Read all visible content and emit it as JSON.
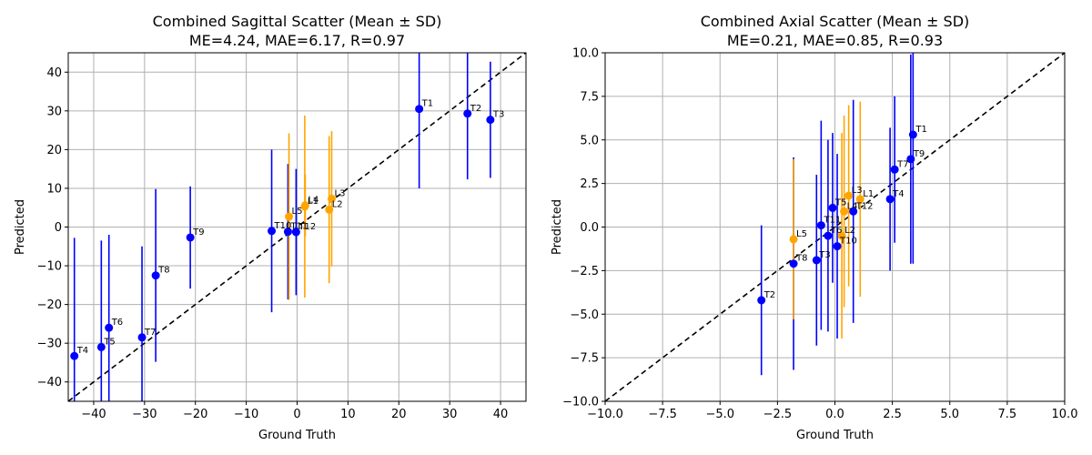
{
  "colors": {
    "thoracic": "#0000ff",
    "lumbar": "#ffa500",
    "identity": "#000000",
    "grid": "#b0b0b0"
  },
  "chart_data": [
    {
      "type": "scatter",
      "title": "Combined Sagittal Scatter (Mean ± SD)",
      "subtitle": "ME=4.24, MAE=6.17, R=0.97",
      "xlabel": "Ground Truth",
      "ylabel": "Predicted",
      "xlim": [
        -45,
        45
      ],
      "ylim": [
        -45,
        45
      ],
      "xticks": [
        -40,
        -30,
        -20,
        -10,
        0,
        10,
        20,
        30,
        40
      ],
      "yticks": [
        -40,
        -30,
        -20,
        -10,
        0,
        10,
        20,
        30,
        40
      ],
      "xtick_labels": [
        "−40",
        "−30",
        "−20",
        "−10",
        "0",
        "10",
        "20",
        "30",
        "40"
      ],
      "ytick_labels": [
        "−40",
        "−30",
        "−20",
        "−10",
        "0",
        "10",
        "20",
        "30",
        "40"
      ],
      "grid": true,
      "identity_line": true,
      "points": [
        {
          "label": "T1",
          "x": 24.0,
          "y": 30.5,
          "sd": 20.5,
          "group": "thoracic"
        },
        {
          "label": "T2",
          "x": 33.5,
          "y": 29.3,
          "sd": 17.0,
          "group": "thoracic"
        },
        {
          "label": "T3",
          "x": 38.0,
          "y": 27.7,
          "sd": 15.0,
          "group": "thoracic"
        },
        {
          "label": "T4",
          "x": -43.8,
          "y": -33.3,
          "sd": 30.5,
          "group": "thoracic"
        },
        {
          "label": "T5",
          "x": -38.5,
          "y": -31.0,
          "sd": 27.5,
          "group": "thoracic"
        },
        {
          "label": "T6",
          "x": -37.0,
          "y": -26.0,
          "sd": 24.0,
          "group": "thoracic"
        },
        {
          "label": "T7",
          "x": -30.5,
          "y": -28.5,
          "sd": 23.5,
          "group": "thoracic"
        },
        {
          "label": "T8",
          "x": -27.8,
          "y": -12.5,
          "sd": 22.3,
          "group": "thoracic"
        },
        {
          "label": "T9",
          "x": -21.0,
          "y": -2.7,
          "sd": 13.2,
          "group": "thoracic"
        },
        {
          "label": "T10",
          "x": -5.0,
          "y": -1.0,
          "sd": 21.0,
          "group": "thoracic"
        },
        {
          "label": "T11",
          "x": -1.8,
          "y": -1.2,
          "sd": 17.5,
          "group": "thoracic"
        },
        {
          "label": "T12",
          "x": -0.2,
          "y": -1.3,
          "sd": 16.3,
          "group": "thoracic"
        },
        {
          "label": "L1",
          "x": 1.5,
          "y": 5.3,
          "sd": 23.5,
          "group": "lumbar"
        },
        {
          "label": "L2",
          "x": 6.3,
          "y": 4.5,
          "sd": 19.0,
          "group": "lumbar"
        },
        {
          "label": "L3",
          "x": 6.8,
          "y": 7.3,
          "sd": 17.5,
          "group": "lumbar"
        },
        {
          "label": "L4",
          "x": 1.6,
          "y": 5.6,
          "sd": 8.0,
          "group": "lumbar"
        },
        {
          "label": "L5",
          "x": -1.6,
          "y": 2.7,
          "sd": 21.5,
          "group": "lumbar"
        }
      ]
    },
    {
      "type": "scatter",
      "title": "Combined Axial Scatter (Mean ± SD)",
      "subtitle": "ME=0.21, MAE=0.85, R=0.93",
      "xlabel": "Ground Truth",
      "ylabel": "Predicted",
      "xlim": [
        -10,
        10
      ],
      "ylim": [
        -10,
        10
      ],
      "xticks": [
        -10,
        -7.5,
        -5,
        -2.5,
        0,
        2.5,
        5,
        7.5,
        10
      ],
      "yticks": [
        -10,
        -7.5,
        -5,
        -2.5,
        0,
        2.5,
        5,
        7.5,
        10
      ],
      "xtick_labels": [
        "−10.0",
        "−7.5",
        "−5.0",
        "−2.5",
        "0.0",
        "2.5",
        "5.0",
        "7.5",
        "10.0"
      ],
      "ytick_labels": [
        "−10.0",
        "−7.5",
        "−5.0",
        "−2.5",
        "0.0",
        "2.5",
        "5.0",
        "7.5",
        "10.0"
      ],
      "grid": true,
      "identity_line": true,
      "points": [
        {
          "label": "T1",
          "x": 3.4,
          "y": 5.3,
          "sd": 7.4,
          "group": "thoracic"
        },
        {
          "label": "T2",
          "x": -3.2,
          "y": -4.2,
          "sd": 4.3,
          "group": "thoracic"
        },
        {
          "label": "T3",
          "x": -0.8,
          "y": -1.9,
          "sd": 4.9,
          "group": "thoracic"
        },
        {
          "label": "T4",
          "x": 2.4,
          "y": 1.6,
          "sd": 4.1,
          "group": "thoracic"
        },
        {
          "label": "T5",
          "x": -0.1,
          "y": 1.1,
          "sd": 4.3,
          "group": "thoracic"
        },
        {
          "label": "T6",
          "x": -0.3,
          "y": -0.5,
          "sd": 5.5,
          "group": "thoracic"
        },
        {
          "label": "T7",
          "x": 2.6,
          "y": 3.3,
          "sd": 4.2,
          "group": "thoracic"
        },
        {
          "label": "T8",
          "x": -1.8,
          "y": -2.1,
          "sd": 6.1,
          "group": "thoracic"
        },
        {
          "label": "T9",
          "x": 3.3,
          "y": 3.9,
          "sd": 6.0,
          "group": "thoracic"
        },
        {
          "label": "T10",
          "x": 0.1,
          "y": -1.1,
          "sd": 5.3,
          "group": "thoracic"
        },
        {
          "label": "T11",
          "x": -0.6,
          "y": 0.1,
          "sd": 6.0,
          "group": "thoracic"
        },
        {
          "label": "T12",
          "x": 0.8,
          "y": 0.9,
          "sd": 6.4,
          "group": "thoracic"
        },
        {
          "label": "L1",
          "x": 1.1,
          "y": 1.6,
          "sd": 5.6,
          "group": "lumbar"
        },
        {
          "label": "L2",
          "x": 0.3,
          "y": -0.5,
          "sd": 5.9,
          "group": "lumbar"
        },
        {
          "label": "L3",
          "x": 0.6,
          "y": 1.8,
          "sd": 5.2,
          "group": "lumbar"
        },
        {
          "label": "L4",
          "x": 0.4,
          "y": 0.9,
          "sd": 5.5,
          "group": "lumbar"
        },
        {
          "label": "L5",
          "x": -1.8,
          "y": -0.7,
          "sd": 4.6,
          "group": "lumbar"
        }
      ]
    }
  ]
}
